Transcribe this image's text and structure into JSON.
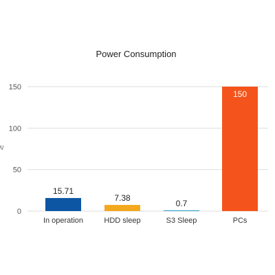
{
  "chart_data": {
    "type": "bar",
    "title": "Power Consumption",
    "ylabel": "W",
    "xlabel": "",
    "categories": [
      "In operation",
      "HDD sleep",
      "S3 Sleep",
      "PCs"
    ],
    "values": [
      15.71,
      7.38,
      0.7,
      150
    ],
    "data_labels": [
      "15.71",
      "7.38",
      "0.7",
      "150"
    ],
    "colors": [
      "#0c56a3",
      "#f3a81d",
      "#1f9cc2",
      "#f4541b"
    ],
    "ylim": [
      0,
      150
    ],
    "yticks": [
      0,
      50,
      100,
      150
    ],
    "grid": true,
    "legend": "none"
  }
}
